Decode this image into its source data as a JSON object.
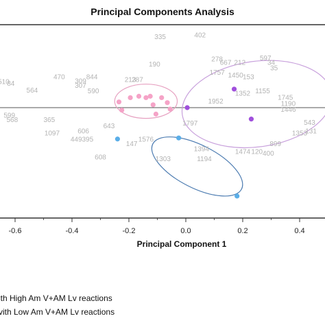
{
  "chart_data": {
    "type": "scatter",
    "title": "Principal Components Analysis",
    "xlabel": "Principal Component 1",
    "ylabel": "",
    "xlim": [
      -0.7,
      0.52
    ],
    "ylim": [
      -0.45,
      0.25
    ],
    "x_ticks": [
      -0.6,
      -0.4,
      -0.2,
      0.0,
      0.2,
      0.4
    ],
    "x_tick_labels": [
      "-0.6",
      "-0.4",
      "-0.2",
      "0.0",
      "0.2",
      "0.4"
    ],
    "zero_line_y": 0.0,
    "colors": {
      "pink": "#f5a3c7",
      "purple": "#a050dc",
      "blue": "#5aaee8",
      "pink_ellipse": "#e6a0c0",
      "purple_ellipse": "#c8a0dc",
      "blue_ellipse": "#4a7ab0",
      "label": "#b3b3b3",
      "axis": "#333333"
    },
    "series": [
      {
        "color_key": "pink",
        "points": [
          {
            "x": -0.235,
            "y": 0.016
          },
          {
            "x": -0.225,
            "y": -0.007
          },
          {
            "x": -0.195,
            "y": 0.028
          },
          {
            "x": -0.165,
            "y": 0.032
          },
          {
            "x": -0.14,
            "y": 0.028
          },
          {
            "x": -0.115,
            "y": 0.008
          },
          {
            "x": -0.105,
            "y": -0.018
          },
          {
            "x": -0.085,
            "y": 0.028
          },
          {
            "x": -0.065,
            "y": 0.014
          },
          {
            "x": -0.055,
            "y": -0.004
          },
          {
            "x": -0.125,
            "y": 0.032
          }
        ]
      },
      {
        "color_key": "purple",
        "points": [
          {
            "x": 0.005,
            "y": 0.0
          },
          {
            "x": 0.17,
            "y": 0.052
          },
          {
            "x": 0.23,
            "y": -0.032
          },
          {
            "x": 0.5,
            "y": -0.012
          }
        ]
      },
      {
        "color_key": "blue",
        "points": [
          {
            "x": -0.24,
            "y": -0.088
          },
          {
            "x": -0.025,
            "y": -0.085
          },
          {
            "x": 0.18,
            "y": -0.248
          }
        ]
      }
    ],
    "point_labels": [
      {
        "text": "335",
        "x": -0.09,
        "y": 0.192
      },
      {
        "text": "402",
        "x": 0.05,
        "y": 0.197
      },
      {
        "text": "278",
        "x": 0.11,
        "y": 0.13
      },
      {
        "text": "667",
        "x": 0.14,
        "y": 0.12
      },
      {
        "text": "212",
        "x": 0.19,
        "y": 0.12
      },
      {
        "text": "597",
        "x": 0.28,
        "y": 0.133
      },
      {
        "text": "34",
        "x": 0.3,
        "y": 0.12
      },
      {
        "text": "35",
        "x": 0.31,
        "y": 0.105
      },
      {
        "text": "190",
        "x": -0.11,
        "y": 0.115
      },
      {
        "text": "1757",
        "x": 0.11,
        "y": 0.092
      },
      {
        "text": "1450",
        "x": 0.175,
        "y": 0.085
      },
      {
        "text": "153",
        "x": 0.22,
        "y": 0.08
      },
      {
        "text": "470",
        "x": -0.445,
        "y": 0.08
      },
      {
        "text": "844",
        "x": -0.33,
        "y": 0.08
      },
      {
        "text": "213",
        "x": -0.195,
        "y": 0.072
      },
      {
        "text": "287",
        "x": -0.17,
        "y": 0.072
      },
      {
        "text": "510",
        "x": -0.64,
        "y": 0.066
      },
      {
        "text": "84",
        "x": -0.615,
        "y": 0.062
      },
      {
        "text": "309",
        "x": -0.37,
        "y": 0.068
      },
      {
        "text": "307",
        "x": -0.37,
        "y": 0.056
      },
      {
        "text": "564",
        "x": -0.54,
        "y": 0.042
      },
      {
        "text": "590",
        "x": -0.325,
        "y": 0.04
      },
      {
        "text": "1352",
        "x": 0.2,
        "y": 0.034
      },
      {
        "text": "1952",
        "x": 0.105,
        "y": 0.012
      },
      {
        "text": "1155",
        "x": 0.27,
        "y": 0.04
      },
      {
        "text": "1745",
        "x": 0.35,
        "y": 0.022
      },
      {
        "text": "1190",
        "x": 0.36,
        "y": 0.005
      },
      {
        "text": "1446",
        "x": 0.36,
        "y": -0.012
      },
      {
        "text": "1",
        "x": 0.505,
        "y": 0.0
      },
      {
        "text": "543",
        "x": 0.435,
        "y": -0.048
      },
      {
        "text": "599",
        "x": -0.62,
        "y": -0.028
      },
      {
        "text": "568",
        "x": -0.61,
        "y": -0.04
      },
      {
        "text": "365",
        "x": -0.48,
        "y": -0.04
      },
      {
        "text": "643",
        "x": -0.27,
        "y": -0.058
      },
      {
        "text": "606",
        "x": -0.36,
        "y": -0.072
      },
      {
        "text": "1097",
        "x": -0.47,
        "y": -0.078
      },
      {
        "text": "449",
        "x": -0.385,
        "y": -0.095
      },
      {
        "text": "395",
        "x": -0.345,
        "y": -0.095
      },
      {
        "text": "1797",
        "x": 0.015,
        "y": -0.05
      },
      {
        "text": "1576",
        "x": -0.14,
        "y": -0.095
      },
      {
        "text": "147",
        "x": -0.19,
        "y": -0.108
      },
      {
        "text": "1353",
        "x": 0.4,
        "y": -0.078
      },
      {
        "text": "131",
        "x": 0.44,
        "y": -0.072
      },
      {
        "text": "899",
        "x": 0.315,
        "y": -0.108
      },
      {
        "text": "1394",
        "x": 0.055,
        "y": -0.122
      },
      {
        "text": "1474",
        "x": 0.2,
        "y": -0.13
      },
      {
        "text": "120",
        "x": 0.25,
        "y": -0.13
      },
      {
        "text": "400",
        "x": 0.29,
        "y": -0.135
      },
      {
        "text": "608",
        "x": -0.3,
        "y": -0.145
      },
      {
        "text": "1303",
        "x": -0.08,
        "y": -0.15
      },
      {
        "text": "1194",
        "x": 0.065,
        "y": -0.15
      }
    ],
    "ellipses": [
      {
        "cx": -0.14,
        "cy": 0.018,
        "rx": 0.11,
        "ry": 0.048,
        "rot": 0,
        "color_key": "pink_ellipse"
      },
      {
        "cx": 0.25,
        "cy": 0.01,
        "rx": 0.265,
        "ry": 0.12,
        "rot": -8,
        "color_key": "purple_ellipse"
      },
      {
        "cx": 0.04,
        "cy": -0.165,
        "rx": 0.175,
        "ry": 0.06,
        "rot": 27,
        "color_key": "blue_ellipse"
      }
    ],
    "legend": [
      {
        "text": "with High Am V+AM Lv reactions",
        "visible_text": "ith High Am V+AM Lv reactions"
      },
      {
        "text": "with Low Am V+AM Lv reactions",
        "visible_text": "vith Low Am V+AM Lv reactions"
      }
    ],
    "grid": false,
    "legend_placement": "bottom-left"
  }
}
